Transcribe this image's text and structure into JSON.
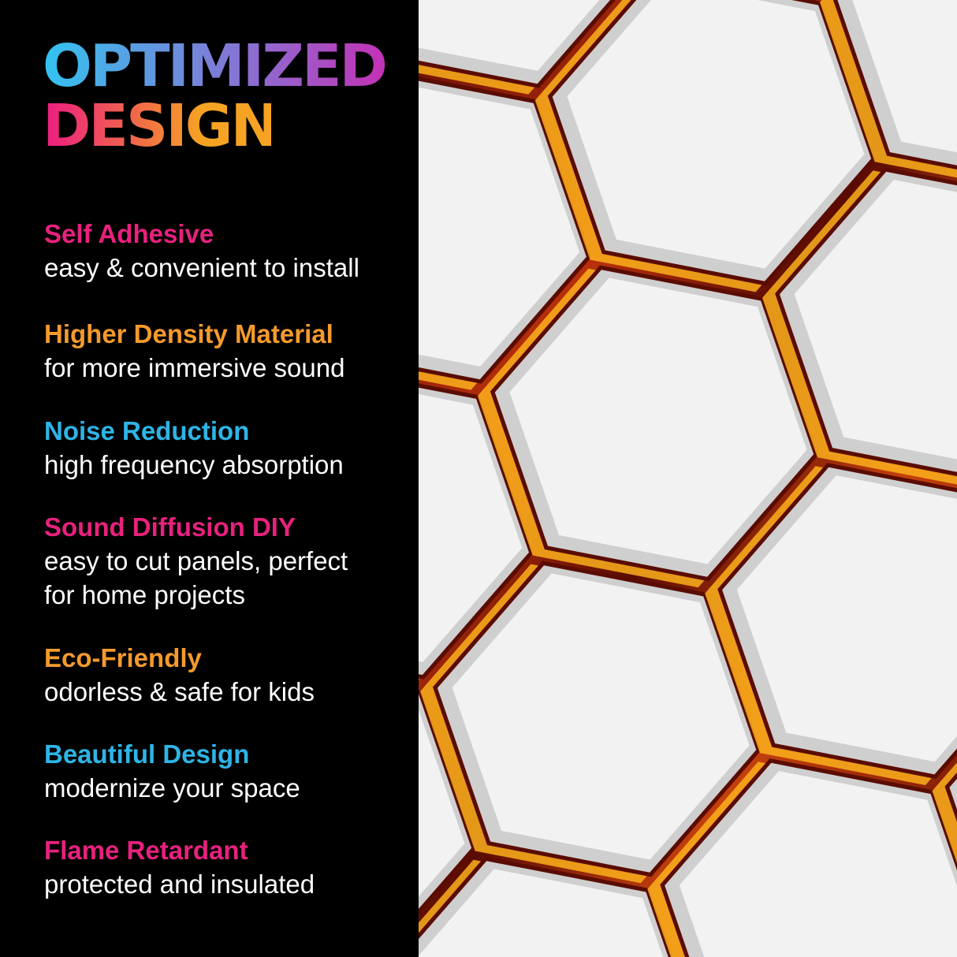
{
  "title": {
    "line1": "OPTIMIZED",
    "line2": "DESIGN"
  },
  "features": [
    {
      "heading": "Self Adhesive",
      "lines": [
        "easy & convenient to install"
      ],
      "color": "#e8217e"
    },
    {
      "heading": "Higher Density Material",
      "lines": [
        "for more immersive sound"
      ],
      "color": "#f49a2c"
    },
    {
      "heading": "Noise Reduction",
      "lines": [
        "high frequency absorption"
      ],
      "color": "#2db5e6"
    },
    {
      "heading": "Sound Diffusion DIY",
      "lines": [
        "easy to cut panels, perfect",
        "for home projects"
      ],
      "color": "#e8217e"
    },
    {
      "heading": "Eco-Friendly",
      "lines": [
        "odorless & safe for kids"
      ],
      "color": "#f49a2c"
    },
    {
      "heading": "Beautiful Design",
      "lines": [
        "modernize your space"
      ],
      "color": "#2db5e6"
    },
    {
      "heading": "Flame Retardant",
      "lines": [
        "protected and insulated"
      ],
      "color": "#e8217e"
    }
  ],
  "image": {
    "subject": "white hexagonal acoustic panels over lava background",
    "panel_color": "#f2f2f2",
    "gap_colors": [
      "#5a0c02",
      "#c4340a",
      "#fbb01c"
    ]
  }
}
